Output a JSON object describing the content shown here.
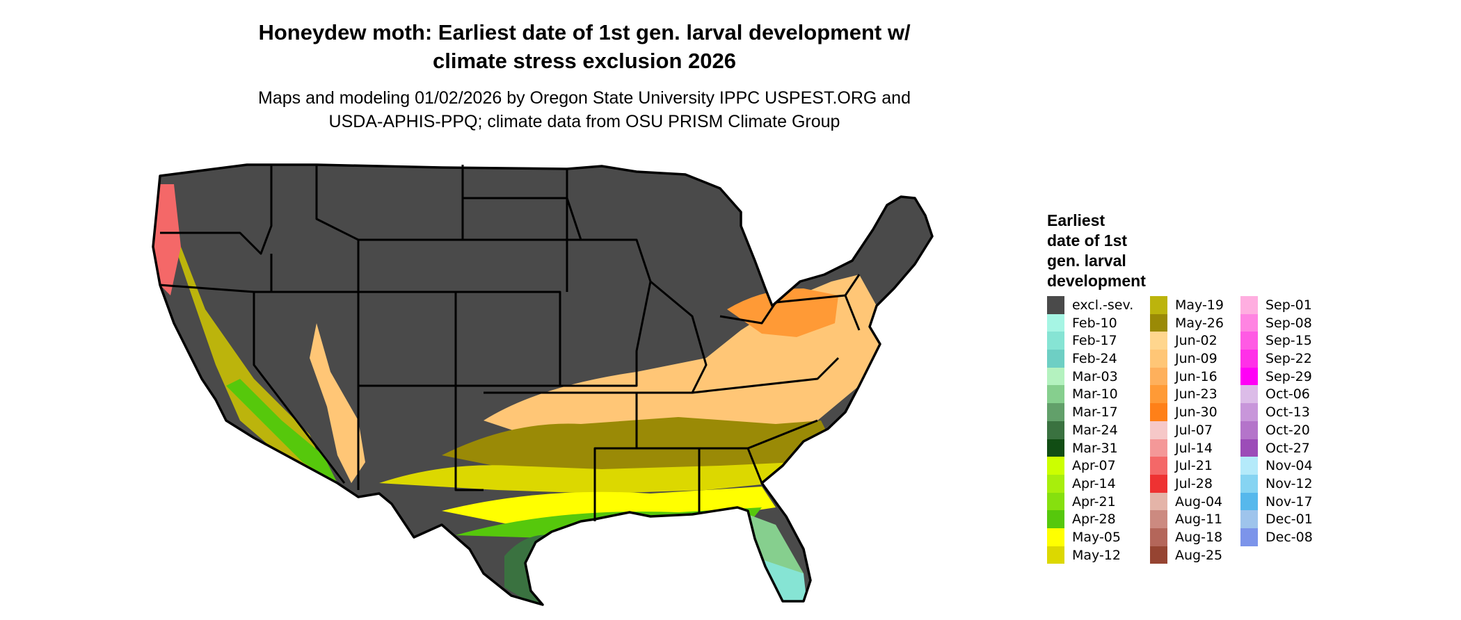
{
  "title_line1": "Honeydew moth: Earliest date of 1st gen. larval development w/",
  "title_line2": "climate stress exclusion 2026",
  "subtitle_line1": "Maps and modeling 01/02/2026 by Oregon State University IPPC USPEST.ORG and",
  "subtitle_line2": "USDA-APHIS-PPQ; climate data from OSU PRISM Climate Group",
  "legend": {
    "title_lines": [
      "Earliest",
      "date of 1st",
      "gen. larval",
      "development"
    ],
    "columns": [
      [
        {
          "label": "excl.-sev.",
          "color": "#4a4a4a"
        },
        {
          "label": "Feb-10",
          "color": "#a6f5e4"
        },
        {
          "label": "Feb-17",
          "color": "#86e4d4"
        },
        {
          "label": "Feb-24",
          "color": "#6ecfc4"
        },
        {
          "label": "Mar-03",
          "color": "#b4f2bf"
        },
        {
          "label": "Mar-10",
          "color": "#86cf8e"
        },
        {
          "label": "Mar-17",
          "color": "#62a06a"
        },
        {
          "label": "Mar-24",
          "color": "#3a7240"
        },
        {
          "label": "Mar-31",
          "color": "#114d14"
        },
        {
          "label": "Apr-07",
          "color": "#ccff00"
        },
        {
          "label": "Apr-14",
          "color": "#a8ee0c"
        },
        {
          "label": "Apr-21",
          "color": "#86e00e"
        },
        {
          "label": "Apr-28",
          "color": "#56c80c"
        },
        {
          "label": "May-05",
          "color": "#ffff00"
        },
        {
          "label": "May-12",
          "color": "#dcd800"
        }
      ],
      [
        {
          "label": "May-19",
          "color": "#bcb40c"
        },
        {
          "label": "May-26",
          "color": "#9a8a06"
        },
        {
          "label": "Jun-02",
          "color": "#ffd68e"
        },
        {
          "label": "Jun-09",
          "color": "#ffc676"
        },
        {
          "label": "Jun-16",
          "color": "#feb05c"
        },
        {
          "label": "Jun-23",
          "color": "#ff9a36"
        },
        {
          "label": "Jun-30",
          "color": "#ff8018"
        },
        {
          "label": "Jul-07",
          "color": "#f6c8c8"
        },
        {
          "label": "Jul-14",
          "color": "#f49898"
        },
        {
          "label": "Jul-21",
          "color": "#f46868"
        },
        {
          "label": "Jul-28",
          "color": "#ee3232"
        },
        {
          "label": "Aug-04",
          "color": "#e4b4a8"
        },
        {
          "label": "Aug-11",
          "color": "#cc8a80"
        },
        {
          "label": "Aug-18",
          "color": "#b4665a"
        },
        {
          "label": "Aug-25",
          "color": "#964432"
        }
      ],
      [
        {
          "label": "Sep-01",
          "color": "#ffaee0"
        },
        {
          "label": "Sep-08",
          "color": "#ff84e2"
        },
        {
          "label": "Sep-15",
          "color": "#ff5ae4"
        },
        {
          "label": "Sep-22",
          "color": "#ff30e8"
        },
        {
          "label": "Sep-29",
          "color": "#ff00f6"
        },
        {
          "label": "Oct-06",
          "color": "#dcbce8"
        },
        {
          "label": "Oct-13",
          "color": "#c896da"
        },
        {
          "label": "Oct-20",
          "color": "#b474ca"
        },
        {
          "label": "Oct-27",
          "color": "#9c4cb8"
        },
        {
          "label": "Nov-04",
          "color": "#b4eafa"
        },
        {
          "label": "Nov-12",
          "color": "#86d4f2"
        },
        {
          "label": "Nov-17",
          "color": "#56b8ec"
        },
        {
          "label": "Dec-01",
          "color": "#9ec4ec"
        },
        {
          "label": "Dec-08",
          "color": "#7c94ea"
        }
      ]
    ]
  }
}
